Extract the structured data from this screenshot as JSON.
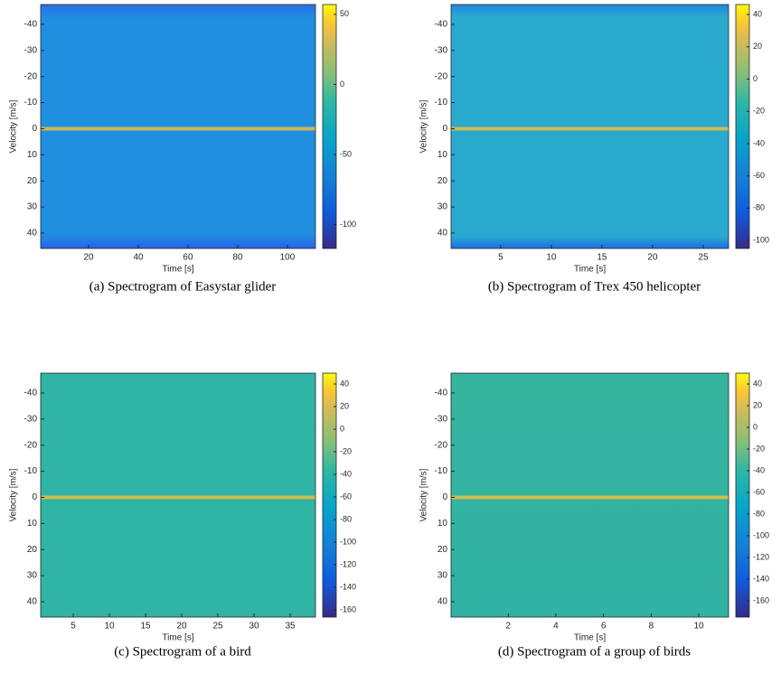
{
  "chart_data": [
    {
      "type": "spectrogram",
      "caption": "(a) Spectrogram of Easystar glider",
      "xlabel": "Time [s]",
      "ylabel": "Velocity [m/s]",
      "xlim": [
        0.7,
        111.3
      ],
      "xticks": [
        20,
        40,
        60,
        80,
        100
      ],
      "ylim": [
        -47.6,
        45.9
      ],
      "y_reversed": true,
      "yticks": [
        -40,
        -30,
        -20,
        -10,
        0,
        10,
        20,
        30,
        40
      ],
      "clim": [
        -117,
        57
      ],
      "cticks": [
        50,
        0,
        -50,
        -100
      ]
    },
    {
      "type": "spectrogram",
      "caption": "(b) Spectrogram of Trex 450 helicopter",
      "xlabel": "Time [s]",
      "ylabel": "Velocity [m/s]",
      "xlim": [
        0.1,
        27.5
      ],
      "xticks": [
        5,
        10,
        15,
        20,
        25
      ],
      "ylim": [
        -47.6,
        45.9
      ],
      "y_reversed": true,
      "yticks": [
        -40,
        -30,
        -20,
        -10,
        0,
        10,
        20,
        30,
        40
      ],
      "clim": [
        -105,
        46.2
      ],
      "cticks": [
        40,
        20,
        0,
        -20,
        -40,
        -60,
        -80,
        -100
      ]
    },
    {
      "type": "spectrogram",
      "caption": "(c) Spectrogram of a bird",
      "xlabel": "Time [s]",
      "ylabel": "Velocity [m/s]",
      "xlim": [
        0.5,
        38.5
      ],
      "xticks": [
        5,
        10,
        15,
        20,
        25,
        30,
        35
      ],
      "ylim": [
        -47.6,
        45.9
      ],
      "y_reversed": true,
      "yticks": [
        -40,
        -30,
        -20,
        -10,
        0,
        10,
        20,
        30,
        40
      ],
      "clim": [
        -166.4,
        49.6
      ],
      "cticks": [
        40,
        20,
        0,
        -20,
        -40,
        -60,
        -80,
        -100,
        -120,
        -140,
        -160
      ]
    },
    {
      "type": "spectrogram",
      "caption": "(d) Spectrogram of a group of birds",
      "xlabel": "Time [s]",
      "ylabel": "Velocity [m/s]",
      "xlim": [
        -0.4,
        11.25
      ],
      "xticks": [
        2,
        4,
        6,
        8,
        10
      ],
      "ylim": [
        -47.6,
        45.9
      ],
      "y_reversed": true,
      "yticks": [
        -40,
        -30,
        -20,
        -10,
        0,
        10,
        20,
        30,
        40
      ],
      "clim": [
        -175,
        50
      ],
      "cticks": [
        40,
        20,
        0,
        -20,
        -40,
        -60,
        -80,
        -100,
        -120,
        -140,
        -160
      ]
    }
  ]
}
